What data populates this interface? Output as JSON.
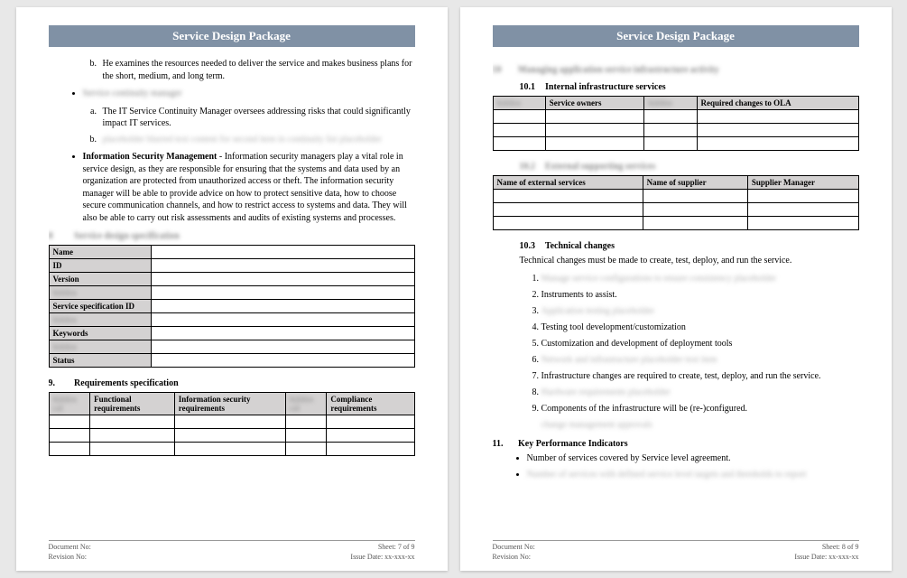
{
  "header_title": "Service Design Package",
  "page7": {
    "item_b": "He examines the resources needed to deliver the service and makes business plans for the short, medium, and long term.",
    "blur_bullet": "Service continuity manager",
    "item_a2": "The IT Service Continuity Manager oversees addressing risks that could significantly impact IT services.",
    "item_b2_blur": "placeholder blurred text content for second item in continuity list placeholder",
    "ism_title": "Information Security Management",
    "ism_body": " - Information security managers play a vital role in service design, as they are responsible for ensuring that the systems and data used by an organization are protected from unauthorized access or theft. The information security manager will be able to provide advice on how to protect sensitive data, how to choose secure communication channels, and how to restrict access to systems and data. They will also be able to carry out risk assessments and audits of existing systems and processes.",
    "sec8_blur": "Service design specification",
    "table1_rows": [
      "Name",
      "ID",
      "Version",
      "",
      "Service specification ID",
      "",
      "Keywords",
      "",
      "Status"
    ],
    "sec9_num": "9.",
    "sec9_title": "Requirements specification",
    "table2_headers": [
      "",
      "Functional requirements",
      "Information security requirements",
      "",
      "Compliance requirements"
    ]
  },
  "page8": {
    "sec10_blur": "Managing application service infrastructure activity",
    "sec10_1_num": "10.1",
    "sec10_1_title": "Internal infrastructure services",
    "t1_headers": [
      "",
      "Service owners",
      "",
      "Required changes to OLA"
    ],
    "sec10_2_blur": "External supporting services",
    "t2_headers": [
      "Name of external services",
      "Name of supplier",
      "Supplier Manager"
    ],
    "sec10_3_num": "10.3",
    "sec10_3_title": "Technical changes",
    "sec10_3_intro": "Technical changes must be made to create, test, deploy, and run the service.",
    "tech_items": [
      {
        "txt": "Manage service configurations to ensure consistency placeholder",
        "blur": true
      },
      {
        "txt": "Instruments to assist.",
        "blur": false
      },
      {
        "txt": "Application testing placeholder",
        "blur": true
      },
      {
        "txt": "Testing tool development/customization",
        "blur": false
      },
      {
        "txt": "Customization and development of deployment tools",
        "blur": false
      },
      {
        "txt": "Network and infrastructure placeholder text item",
        "blur": true
      },
      {
        "txt": "Infrastructure changes are required to create, test, deploy, and run the service.",
        "blur": false
      },
      {
        "txt": "Hardware requirements placeholder",
        "blur": true
      },
      {
        "txt": "Components of the infrastructure will be (re-)configured.",
        "blur": false
      }
    ],
    "tech_trail_blur": "change management approvals",
    "sec11_num": "11.",
    "sec11_title": "Key Performance Indicators",
    "kpi1": "Number of services covered by Service level agreement.",
    "kpi2_blur": "Number of services with defined service level targets and thresholds to report"
  },
  "footer": {
    "doc_no": "Document No:",
    "rev_no": "Revision No:",
    "sheet7": "Sheet: 7 of 9",
    "sheet8": "Sheet: 8 of 9",
    "issue": "Issue Date: xx-xxx-xx"
  }
}
